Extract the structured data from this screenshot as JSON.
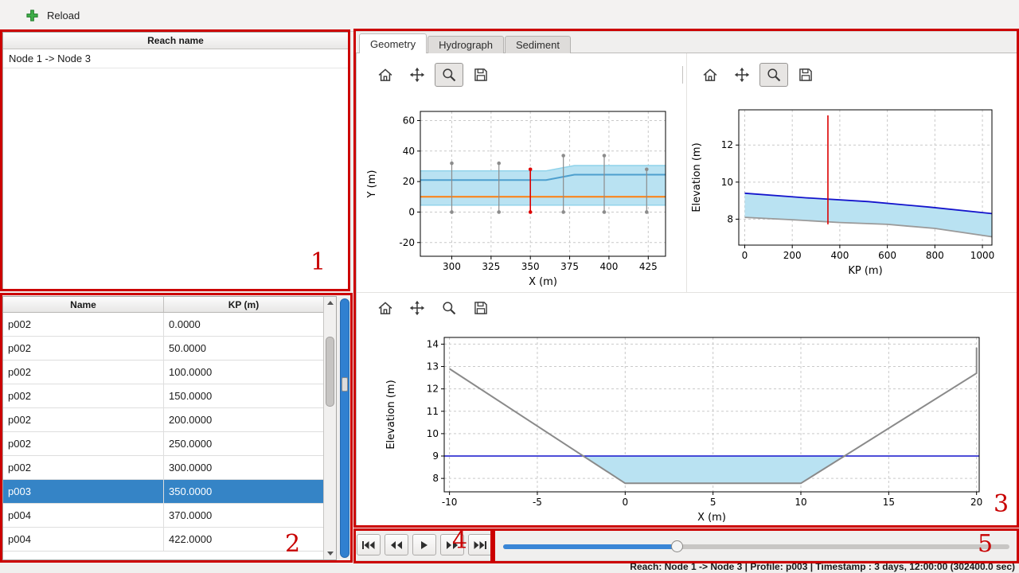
{
  "topbar": {
    "reload_label": "Reload"
  },
  "reach_panel": {
    "header": "Reach name",
    "items": [
      "Node 1 -> Node 3"
    ]
  },
  "profile_table": {
    "columns": [
      "Name",
      "KP (m)"
    ],
    "rows": [
      [
        "p002",
        "0.0000"
      ],
      [
        "p002",
        "50.0000"
      ],
      [
        "p002",
        "100.0000"
      ],
      [
        "p002",
        "150.0000"
      ],
      [
        "p002",
        "200.0000"
      ],
      [
        "p002",
        "250.0000"
      ],
      [
        "p002",
        "300.0000"
      ],
      [
        "p003",
        "350.0000"
      ],
      [
        "p004",
        "370.0000"
      ],
      [
        "p004",
        "422.0000"
      ]
    ],
    "selected_index": 7
  },
  "tabs": [
    {
      "label": "Geometry",
      "active": true
    },
    {
      "label": "Hydrograph",
      "active": false
    },
    {
      "label": "Sediment",
      "active": false
    }
  ],
  "figure_toolbar_buttons": [
    "home",
    "pan",
    "zoom",
    "save"
  ],
  "playback_buttons": [
    "skip-to-start",
    "step-back",
    "play",
    "step-forward",
    "skip-to-end"
  ],
  "timeline": {
    "value_percent": 34.3
  },
  "status_bar": {
    "text": "Reach: Node 1 -> Node 3 | Profile: p003 | Timestamp : 3 days, 12:00:00 (302400.0 sec)"
  },
  "annotations": {
    "labels": [
      "1",
      "2",
      "3",
      "4",
      "5"
    ]
  },
  "colors": {
    "selection_blue": "#3584c6",
    "water_fill": "#b9e2f2",
    "water_line": "#1414cc",
    "bed_line": "#8c8c8c",
    "marker_red": "#dd0000",
    "centerline_orange": "#ff7f0e",
    "annotation_red": "#cc0000",
    "timeline_blue": "#3a86d6"
  },
  "chart_data": [
    {
      "id": "plan_view",
      "type": "line",
      "xlabel": "X (m)",
      "ylabel": "Y (m)",
      "xlim": [
        280,
        436
      ],
      "ylim": [
        -29,
        66
      ],
      "xticks": [
        300,
        325,
        350,
        375,
        400,
        425
      ],
      "yticks": [
        -20,
        0,
        20,
        40,
        60
      ],
      "grid": true,
      "series": [
        {
          "name": "channel-banks-band",
          "type": "band",
          "color": "#b9e2f2",
          "edge": "#8ed2ea",
          "upper": [
            [
              280,
              27
            ],
            [
              360,
              27
            ],
            [
              378,
              30.5
            ],
            [
              436,
              30.5
            ]
          ],
          "lower": [
            [
              280,
              4.5
            ],
            [
              436,
              4.5
            ]
          ]
        },
        {
          "name": "water-edge-line",
          "type": "line",
          "color": "#4d9fce",
          "width": 2,
          "points": [
            [
              280,
              21
            ],
            [
              360,
              21
            ],
            [
              378,
              24.5
            ],
            [
              436,
              24.5
            ]
          ]
        },
        {
          "name": "centerline",
          "type": "line",
          "color": "#ff7f0e",
          "width": 2,
          "points": [
            [
              280,
              10
            ],
            [
              436,
              10
            ]
          ]
        },
        {
          "name": "profile-marker-300",
          "type": "vline",
          "color": "#8c8c8c",
          "width": 1.2,
          "dots": true,
          "x": 300,
          "y0": 0,
          "y1": 32
        },
        {
          "name": "profile-marker-330",
          "type": "vline",
          "color": "#8c8c8c",
          "width": 1.2,
          "dots": true,
          "x": 330,
          "y0": 0,
          "y1": 32
        },
        {
          "name": "profile-marker-371",
          "type": "vline",
          "color": "#8c8c8c",
          "width": 1.2,
          "dots": true,
          "x": 371,
          "y0": 0,
          "y1": 37
        },
        {
          "name": "profile-marker-397",
          "type": "vline",
          "color": "#8c8c8c",
          "width": 1.2,
          "dots": true,
          "x": 397,
          "y0": 0,
          "y1": 37
        },
        {
          "name": "profile-marker-424",
          "type": "vline",
          "color": "#8c8c8c",
          "width": 1.2,
          "dots": true,
          "x": 424,
          "y0": 0,
          "y1": 28
        },
        {
          "name": "current-profile-marker",
          "type": "vline",
          "color": "#dd0000",
          "width": 1.6,
          "dots": true,
          "x": 350,
          "y0": 0,
          "y1": 28
        }
      ]
    },
    {
      "id": "long_profile",
      "type": "line",
      "xlabel": "KP (m)",
      "ylabel": "Elevation (m)",
      "xlim": [
        -25,
        1040
      ],
      "ylim": [
        6.6,
        13.9
      ],
      "xticks": [
        0,
        200,
        400,
        600,
        800,
        1000
      ],
      "yticks": [
        8,
        10,
        12
      ],
      "grid": true,
      "series": [
        {
          "name": "water-fill",
          "type": "band",
          "color": "#b9e2f2",
          "upper": [
            [
              0,
              9.4
            ],
            [
              260,
              9.15
            ],
            [
              520,
              8.95
            ],
            [
              780,
              8.65
            ],
            [
              1040,
              8.3
            ]
          ],
          "lower": [
            [
              0,
              8.1
            ],
            [
              200,
              7.97
            ],
            [
              400,
              7.82
            ],
            [
              600,
              7.72
            ],
            [
              800,
              7.5
            ],
            [
              1040,
              7.05
            ]
          ]
        },
        {
          "name": "water-surface",
          "type": "line",
          "color": "#1414cc",
          "width": 1.8,
          "points": [
            [
              0,
              9.4
            ],
            [
              260,
              9.15
            ],
            [
              520,
              8.95
            ],
            [
              780,
              8.65
            ],
            [
              1040,
              8.3
            ]
          ]
        },
        {
          "name": "bed-profile",
          "type": "line",
          "color": "#9a9a9a",
          "width": 1.8,
          "points": [
            [
              0,
              8.1
            ],
            [
              200,
              7.97
            ],
            [
              400,
              7.82
            ],
            [
              600,
              7.72
            ],
            [
              800,
              7.5
            ],
            [
              1040,
              7.05
            ]
          ]
        },
        {
          "name": "current-profile-marker",
          "type": "vline",
          "color": "#dd0000",
          "width": 1.6,
          "x": 350,
          "y0": 7.72,
          "y1": 13.6
        }
      ]
    },
    {
      "id": "cross_section",
      "type": "line",
      "xlabel": "X (m)",
      "ylabel": "Elevation (m)",
      "xlim": [
        -10.3,
        20.15
      ],
      "ylim": [
        7.4,
        14.3
      ],
      "xticks": [
        -10,
        -5,
        0,
        5,
        10,
        15,
        20
      ],
      "yticks": [
        8,
        9,
        10,
        11,
        12,
        13,
        14
      ],
      "grid": true,
      "series": [
        {
          "name": "water-area",
          "type": "polygon",
          "color": "#b9e2f2",
          "points": [
            [
              -2.45,
              9
            ],
            [
              0,
              7.78
            ],
            [
              10,
              7.78
            ],
            [
              12.45,
              9
            ]
          ]
        },
        {
          "name": "water-level",
          "type": "line",
          "color": "#1414cc",
          "width": 1.5,
          "points": [
            [
              -10.3,
              9
            ],
            [
              20.15,
              9
            ]
          ]
        },
        {
          "name": "bed-cross-section",
          "type": "line",
          "color": "#8a8a8a",
          "width": 2,
          "points": [
            [
              -10,
              12.9
            ],
            [
              0,
              7.78
            ],
            [
              10,
              7.78
            ],
            [
              20,
              12.7
            ],
            [
              20,
              13.85
            ]
          ]
        }
      ]
    }
  ]
}
